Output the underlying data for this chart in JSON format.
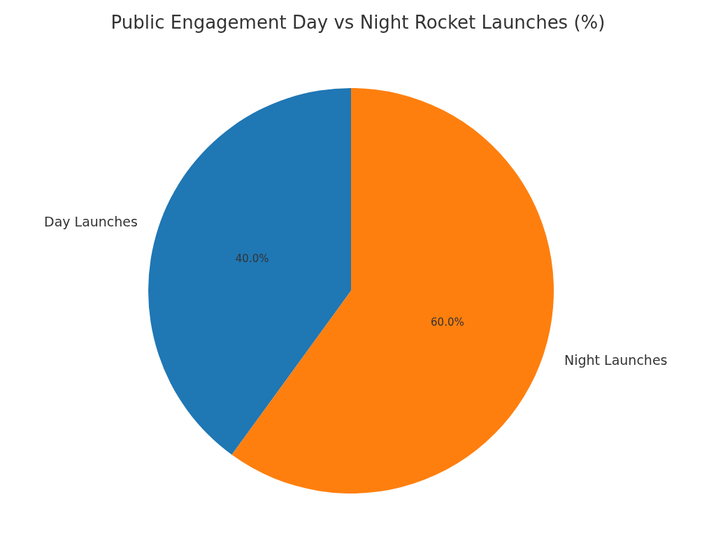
{
  "chart_data": {
    "type": "pie",
    "title": "Public Engagement Day vs Night Rocket Launches (%)",
    "categories": [
      "Day Launches",
      "Night Launches"
    ],
    "values": [
      40,
      60
    ],
    "colors": [
      "#1f77b4",
      "#ff7f0e"
    ],
    "value_labels": [
      "40.0%",
      "60.0%"
    ],
    "legend": false
  }
}
